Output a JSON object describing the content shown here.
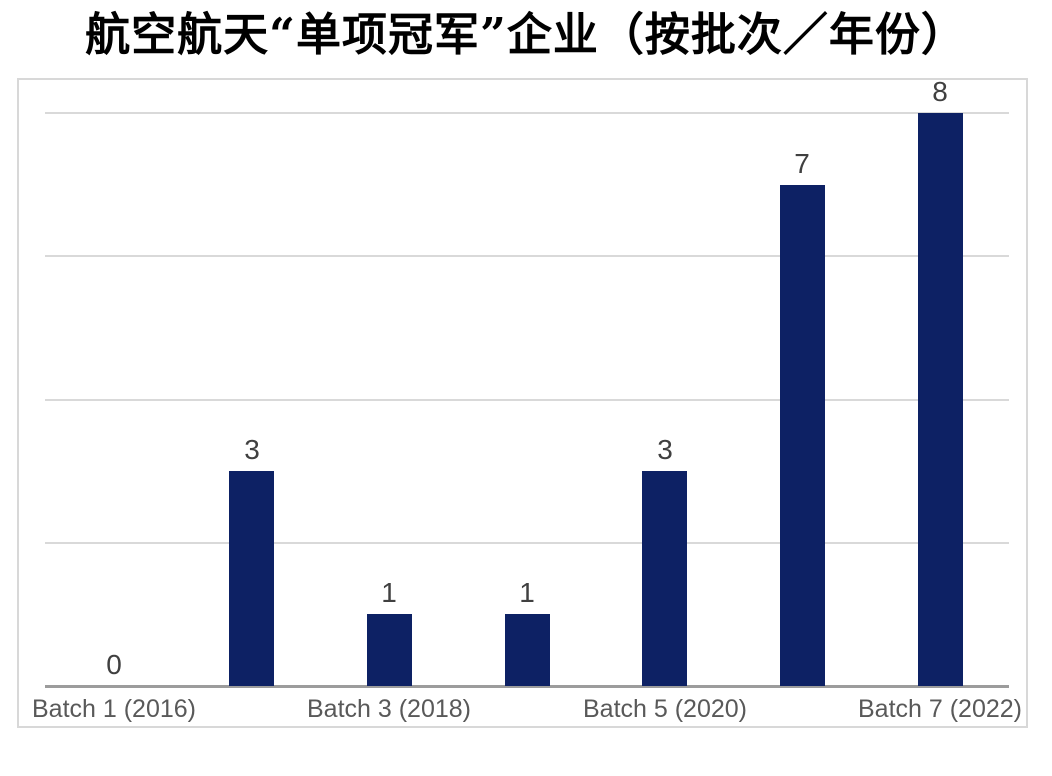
{
  "chart_data": {
    "type": "bar",
    "title": "航空航天“单项冠军”企业（按批次／年份）",
    "values": [
      0,
      3,
      1,
      1,
      3,
      7,
      8
    ],
    "data_labels": [
      "0",
      "3",
      "1",
      "1",
      "3",
      "7",
      "8"
    ],
    "bar_count": 7,
    "x_tick_labels": [
      "Batch 1 (2016)",
      "Batch 3 (2018)",
      "Batch 5 (2020)",
      "Batch 7 (2022)"
    ],
    "x_tick_positions": [
      0,
      2,
      4,
      6
    ],
    "xlabel": "",
    "ylabel": "",
    "ylim": [
      0,
      8
    ],
    "gridline_values": [
      2,
      4,
      6,
      8
    ],
    "grid": true,
    "legend": false,
    "colors": {
      "bar": "#0d2164",
      "gridline": "#d9d9d9",
      "axis_line": "#9c9c9c",
      "data_label": "#404040",
      "tick_label": "#595959",
      "title": "#000000",
      "plot_border": "#d8d8d8",
      "background": "#ffffff"
    }
  }
}
